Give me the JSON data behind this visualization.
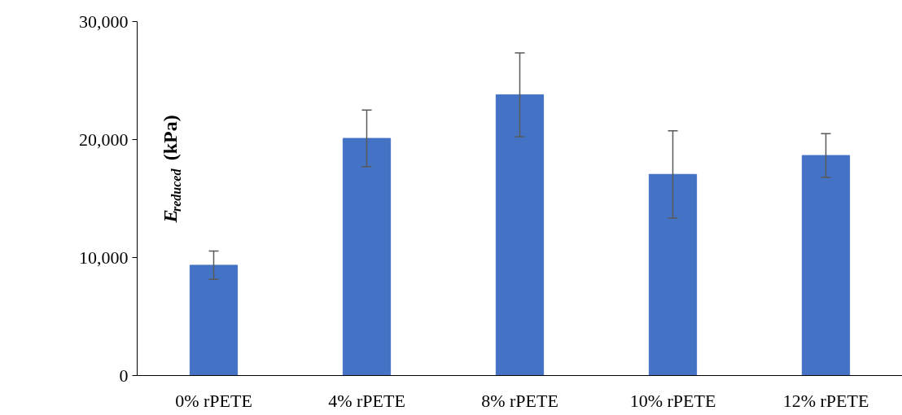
{
  "chart_data": {
    "type": "bar",
    "ylabel": "E$_{reduced}$ (kPa)",
    "categories": [
      "0% rPETE",
      "4% rPETE",
      "8% rPETE",
      "10% rPETE",
      "12% rPETE"
    ],
    "values": [
      9350,
      20100,
      23800,
      17050,
      18650
    ],
    "errors": [
      1200,
      2400,
      3550,
      3700,
      1850
    ],
    "color": "#4472c4",
    "ylim": [
      0,
      30000
    ],
    "yticks": [
      {
        "value": 0,
        "label": "0"
      },
      {
        "value": 10000,
        "label": "10,000"
      },
      {
        "value": 20000,
        "label": "20,000"
      },
      {
        "value": 30000,
        "label": "30,000"
      }
    ],
    "grid": false
  }
}
